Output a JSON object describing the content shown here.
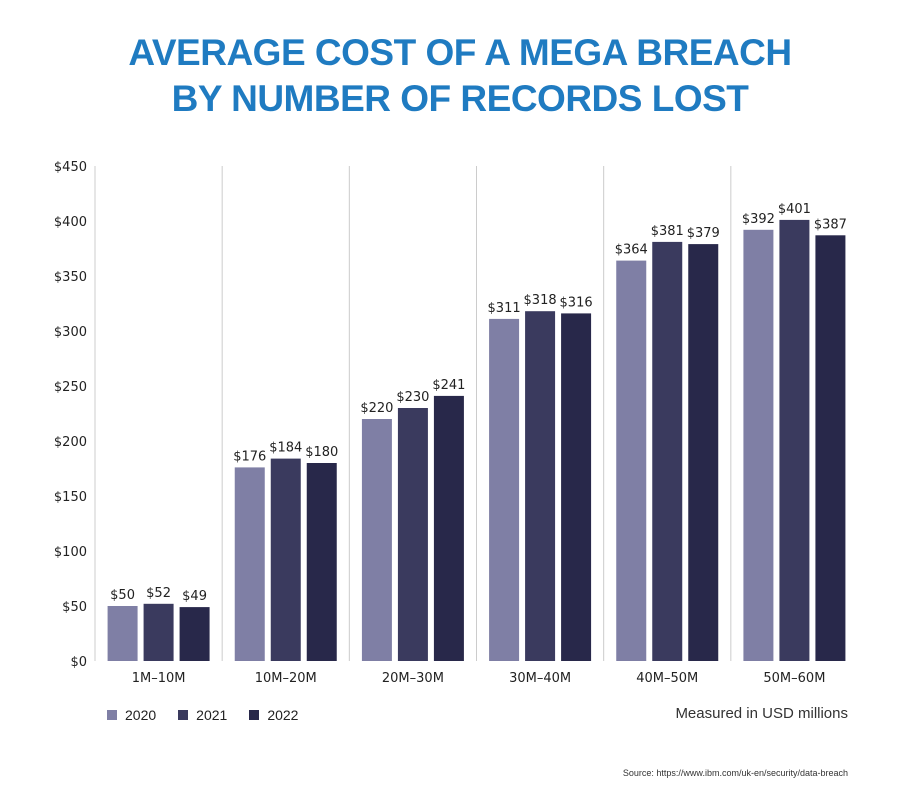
{
  "title_line1": "AVERAGE COST OF A MEGA BREACH",
  "title_line2": "BY NUMBER OF RECORDS LOST",
  "note": "Measured in USD millions",
  "source": "Source: https://www.ibm.com/uk-en/security/data-breach",
  "colors": {
    "title": "#1f7bc1",
    "series": [
      "#7f7fa5",
      "#3a3a5e",
      "#28284a"
    ],
    "gridline": "#cccccc"
  },
  "chart_data": {
    "type": "bar",
    "title": "AVERAGE COST OF A MEGA BREACH BY NUMBER OF RECORDS LOST",
    "categories": [
      "1M–10M",
      "10M–20M",
      "20M–30M",
      "30M–40M",
      "40M–50M",
      "50M–60M"
    ],
    "series": [
      {
        "name": "2020",
        "values": [
          50,
          176,
          220,
          311,
          364,
          392
        ]
      },
      {
        "name": "2021",
        "values": [
          52,
          184,
          230,
          318,
          381,
          401
        ]
      },
      {
        "name": "2022",
        "values": [
          49,
          180,
          241,
          316,
          379,
          387
        ]
      }
    ],
    "ylim": [
      0,
      450
    ],
    "yticks": [
      0,
      50,
      100,
      150,
      200,
      250,
      300,
      350,
      400,
      450
    ],
    "ytick_prefix": "$",
    "value_label_prefix": "$",
    "xlabel": "",
    "ylabel": "",
    "legend_position": "bottom-left",
    "grid": "vertical separators between categories"
  }
}
